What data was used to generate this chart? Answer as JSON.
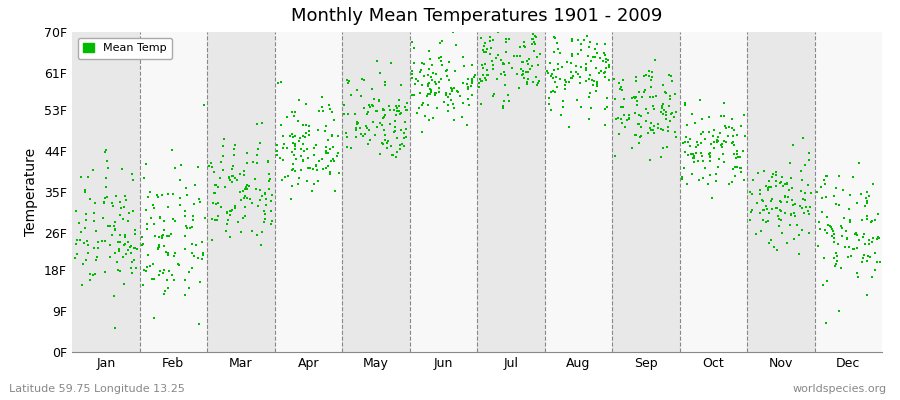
{
  "title": "Monthly Mean Temperatures 1901 - 2009",
  "ylabel": "Temperature",
  "xlabel": "",
  "yticks": [
    0,
    9,
    18,
    26,
    35,
    44,
    53,
    61,
    70
  ],
  "ytick_labels": [
    "0F",
    "9F",
    "18F",
    "26F",
    "35F",
    "44F",
    "53F",
    "61F",
    "70F"
  ],
  "months": [
    "Jan",
    "Feb",
    "Mar",
    "Apr",
    "May",
    "Jun",
    "Jul",
    "Aug",
    "Sep",
    "Oct",
    "Nov",
    "Dec"
  ],
  "dot_color": "#00BB00",
  "bg_color_odd": "#E8E8E8",
  "bg_color_even": "#F8F8F8",
  "n_years": 109,
  "start_year": 1901,
  "end_year": 2009,
  "lat": "Latitude 59.75 Longitude 13.25",
  "watermark": "worldspecies.org",
  "legend_label": "Mean Temp",
  "ylim": [
    0,
    70
  ],
  "monthly_means_f": [
    26.0,
    24.5,
    34.5,
    44.5,
    51.5,
    59.0,
    63.5,
    61.0,
    53.0,
    44.0,
    33.0,
    27.0
  ],
  "monthly_stds_f": [
    7.0,
    7.5,
    6.0,
    5.5,
    5.0,
    4.5,
    4.0,
    4.5,
    4.5,
    5.0,
    5.5,
    6.5
  ]
}
